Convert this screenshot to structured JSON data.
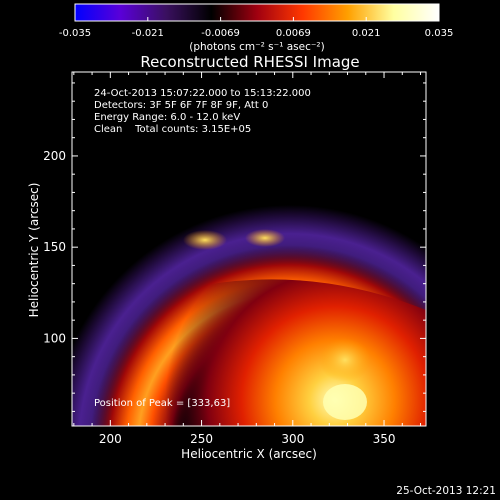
{
  "chart_data": {
    "type": "heatmap",
    "title": "Reconstructed RHESSI Image",
    "xlabel": "Heliocentric X (arcsec)",
    "ylabel": "Heliocentric Y (arcsec)",
    "xlim": [
      179,
      373
    ],
    "ylim": [
      52,
      246
    ],
    "xticks": [
      200,
      250,
      300,
      350
    ],
    "yticks": [
      100,
      150,
      200
    ],
    "colorbar": {
      "range": [
        -0.035,
        0.035
      ],
      "ticks": [
        "-0.035",
        "-0.021",
        "-0.0069",
        "0.0069",
        "0.021",
        "0.035"
      ],
      "unit_label": "(photons cm⁻² s⁻¹ asec⁻²)",
      "colormap": [
        "#0000ff",
        "#5a00d8",
        "#3a1060",
        "#000000",
        "#a00010",
        "#ff3800",
        "#ffa000",
        "#ffffa0",
        "#ffffff"
      ]
    },
    "info_lines": [
      "24-Oct-2013 15:07:22.000 to 15:13:22.000",
      "Detectors: 3F 5F 6F 7F 8F 9F, Att 0",
      "Energy Range: 6.0 - 12.0 keV",
      "Clean    Total counts: 3.15E+05"
    ],
    "peak_label": "Position of Peak = [333,63]",
    "peak": [
      333,
      63
    ],
    "features": [
      {
        "name": "outer-purple-arc",
        "center": [
          290,
          5
        ],
        "radius": 215,
        "value": -0.012
      },
      {
        "name": "upper-bright-arc",
        "center": [
          290,
          5
        ],
        "radius": 150,
        "value": 0.028
      },
      {
        "name": "lower-bright-blob",
        "center": [
          320,
          70
        ],
        "value": 0.035
      }
    ]
  },
  "footer": {
    "timestamp": "25-Oct-2013 12:21"
  }
}
